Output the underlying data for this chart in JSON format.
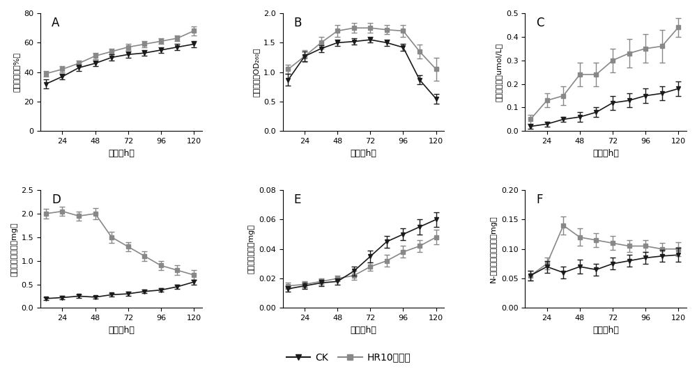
{
  "x": [
    12,
    24,
    36,
    48,
    60,
    72,
    84,
    96,
    108,
    120
  ],
  "A_CK": [
    32,
    37,
    43,
    46,
    50,
    52,
    53,
    55,
    57,
    59
  ],
  "A_HR10": [
    39,
    42,
    46,
    51,
    54,
    57,
    59,
    61,
    63,
    68
  ],
  "A_CK_err": [
    3,
    2,
    2,
    2,
    2,
    2,
    2,
    2,
    2,
    2
  ],
  "A_HR10_err": [
    2,
    2,
    2,
    2,
    2,
    2,
    2,
    2,
    2,
    3
  ],
  "A_ylabel": "相对电导率（%）",
  "A_ylim": [
    0,
    80
  ],
  "A_yticks": [
    0,
    20,
    40,
    60,
    80
  ],
  "B_CK": [
    0.87,
    1.27,
    1.4,
    1.5,
    1.52,
    1.55,
    1.5,
    1.42,
    0.87,
    0.55
  ],
  "B_HR10": [
    1.05,
    1.27,
    1.5,
    1.7,
    1.75,
    1.75,
    1.72,
    1.7,
    1.35,
    1.05
  ],
  "B_CK_err": [
    0.1,
    0.08,
    0.06,
    0.05,
    0.05,
    0.05,
    0.05,
    0.06,
    0.08,
    0.08
  ],
  "B_HR10_err": [
    0.08,
    0.1,
    0.1,
    0.1,
    0.08,
    0.08,
    0.08,
    0.1,
    0.12,
    0.2
  ],
  "B_ylabel": "核酸外渗（OD₂₆₀）",
  "B_ylim": [
    0.0,
    2.0
  ],
  "B_yticks": [
    0.0,
    0.5,
    1.0,
    1.5,
    2.0
  ],
  "C_CK": [
    0.02,
    0.03,
    0.05,
    0.06,
    0.08,
    0.12,
    0.13,
    0.15,
    0.16,
    0.18
  ],
  "C_HR10": [
    0.05,
    0.13,
    0.15,
    0.24,
    0.24,
    0.3,
    0.33,
    0.35,
    0.36,
    0.44
  ],
  "C_CK_err": [
    0.01,
    0.01,
    0.01,
    0.02,
    0.02,
    0.03,
    0.03,
    0.03,
    0.03,
    0.03
  ],
  "C_HR10_err": [
    0.02,
    0.03,
    0.04,
    0.05,
    0.05,
    0.05,
    0.06,
    0.06,
    0.07,
    0.04
  ],
  "C_ylabel": "丙二醇含量（umol/L）",
  "C_ylim": [
    0.0,
    0.5
  ],
  "C_yticks": [
    0.0,
    0.1,
    0.2,
    0.3,
    0.4,
    0.5
  ],
  "D_CK": [
    0.2,
    0.22,
    0.25,
    0.23,
    0.28,
    0.3,
    0.35,
    0.38,
    0.45,
    0.55
  ],
  "D_HR10": [
    2.0,
    2.05,
    1.95,
    2.0,
    1.5,
    1.3,
    1.1,
    0.9,
    0.8,
    0.7
  ],
  "D_CK_err": [
    0.03,
    0.03,
    0.03,
    0.03,
    0.04,
    0.04,
    0.04,
    0.04,
    0.05,
    0.05
  ],
  "D_HR10_err": [
    0.1,
    0.1,
    0.1,
    0.12,
    0.12,
    0.1,
    0.1,
    0.1,
    0.1,
    0.1
  ],
  "D_ylabel": "可溦性蛋白含量（mg）",
  "D_ylim": [
    0.0,
    2.5
  ],
  "D_yticks": [
    0.0,
    0.5,
    1.0,
    1.5,
    2.0,
    2.5
  ],
  "E_CK": [
    0.013,
    0.015,
    0.017,
    0.018,
    0.025,
    0.035,
    0.045,
    0.05,
    0.055,
    0.06
  ],
  "E_HR10": [
    0.015,
    0.016,
    0.018,
    0.02,
    0.022,
    0.028,
    0.032,
    0.038,
    0.042,
    0.048
  ],
  "E_CK_err": [
    0.002,
    0.002,
    0.002,
    0.002,
    0.003,
    0.004,
    0.004,
    0.004,
    0.005,
    0.005
  ],
  "E_HR10_err": [
    0.002,
    0.002,
    0.002,
    0.002,
    0.003,
    0.003,
    0.004,
    0.004,
    0.004,
    0.005
  ],
  "E_ylabel": "还原性糖含量（mg）",
  "E_ylim": [
    0.0,
    0.08
  ],
  "E_yticks": [
    0.0,
    0.02,
    0.04,
    0.06,
    0.08
  ],
  "F_CK": [
    0.055,
    0.07,
    0.06,
    0.07,
    0.065,
    0.075,
    0.08,
    0.085,
    0.088,
    0.09
  ],
  "F_HR10": [
    0.055,
    0.075,
    0.14,
    0.12,
    0.115,
    0.11,
    0.105,
    0.105,
    0.1,
    0.1
  ],
  "F_CK_err": [
    0.008,
    0.01,
    0.01,
    0.012,
    0.01,
    0.01,
    0.01,
    0.01,
    0.01,
    0.012
  ],
  "F_HR10_err": [
    0.008,
    0.01,
    0.015,
    0.015,
    0.012,
    0.012,
    0.01,
    0.01,
    0.01,
    0.012
  ],
  "F_ylabel": "N-乙酰葡萄糖胺含量（mg）",
  "F_ylim": [
    0.0,
    0.2
  ],
  "F_yticks": [
    0.0,
    0.05,
    0.1,
    0.15,
    0.2
  ],
  "xlabel": "时间（h）",
  "xticks": [
    24,
    48,
    72,
    96,
    120
  ],
  "CK_color": "#1a1a1a",
  "HR10_color": "#888888",
  "legend_CK": "CK",
  "legend_HR10": "HR10发酵液"
}
